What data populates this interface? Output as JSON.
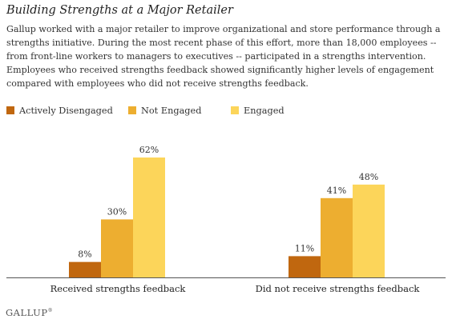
{
  "chart_data": {
    "type": "bar",
    "title": "Building Strengths at a Major Retailer",
    "description": "Gallup worked with a major retailer to improve organizational and store performance through a strengths initiative. During the most recent phase of this effort, more than 18,000 employees -- from front-line workers to managers to executives -- participated in a strengths intervention. Employees who received strengths feedback showed significantly higher levels of engagement compared with employees who did not receive strengths feedback.",
    "categories": [
      "Received strengths feedback",
      "Did not receive strengths feedback"
    ],
    "series": [
      {
        "name": "Actively Disengaged",
        "values": [
          8,
          11
        ],
        "labels": [
          "8%",
          "11%"
        ],
        "color": "#c0670f"
      },
      {
        "name": "Not Engaged",
        "values": [
          30,
          41
        ],
        "labels": [
          "30%",
          "41%"
        ],
        "color": "#edae30"
      },
      {
        "name": "Engaged",
        "values": [
          62,
          48
        ],
        "labels": [
          "62%",
          "48%"
        ],
        "color": "#fcd55a"
      }
    ],
    "xlabel": "",
    "ylabel": "",
    "ylim": [
      0,
      62
    ],
    "grid": false,
    "legend_position": "top-left",
    "axis_color": "#555555"
  },
  "footer": {
    "brand": "GALLUP",
    "mark": "®"
  }
}
